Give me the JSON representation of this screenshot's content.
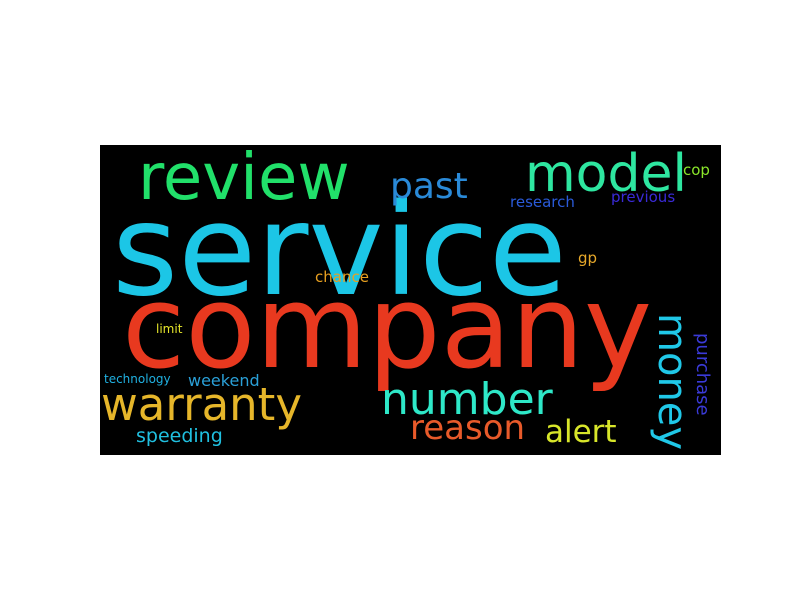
{
  "words": [
    {
      "key": "service",
      "text": "service",
      "color": "#1cc6e6"
    },
    {
      "key": "company",
      "text": "company",
      "color": "#e8391f"
    },
    {
      "key": "review",
      "text": "review",
      "color": "#21e06a"
    },
    {
      "key": "model",
      "text": "model",
      "color": "#2ee6a0"
    },
    {
      "key": "past",
      "text": "past",
      "color": "#2a8ad8"
    },
    {
      "key": "warranty",
      "text": "warranty",
      "color": "#e6b62a"
    },
    {
      "key": "number",
      "text": "number",
      "color": "#2ee8c8"
    },
    {
      "key": "money",
      "text": "money",
      "color": "#20c8e8"
    },
    {
      "key": "reason",
      "text": "reason",
      "color": "#e85a2a"
    },
    {
      "key": "alert",
      "text": "alert",
      "color": "#d8e62a"
    },
    {
      "key": "purchase",
      "text": "purchase",
      "color": "#3a3ad8"
    },
    {
      "key": "speeding",
      "text": "speeding",
      "color": "#20c0e0"
    },
    {
      "key": "weekend",
      "text": "weekend",
      "color": "#2aa0d8"
    },
    {
      "key": "technology",
      "text": "technology",
      "color": "#20b0e0"
    },
    {
      "key": "limit",
      "text": "limit",
      "color": "#e6e62a"
    },
    {
      "key": "chance",
      "text": "chance",
      "color": "#e8a020"
    },
    {
      "key": "gp",
      "text": "gp",
      "color": "#e6a82a"
    },
    {
      "key": "research",
      "text": "research",
      "color": "#2a5ad8"
    },
    {
      "key": "previous",
      "text": "previous",
      "color": "#3a2ad8"
    },
    {
      "key": "cop",
      "text": "cop",
      "color": "#8ae62a"
    }
  ]
}
